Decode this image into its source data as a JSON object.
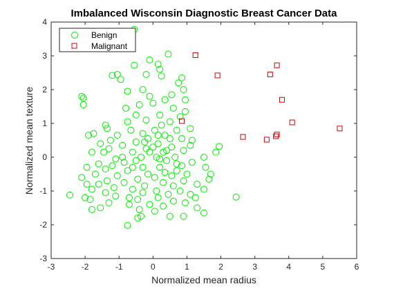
{
  "chart_data": {
    "type": "scatter",
    "title": "Imbalanced Wisconsin Diagnostic Breast Cancer Data",
    "xlabel": "Normalized mean radius",
    "ylabel": "Normalized mean texture",
    "xlim": [
      -3,
      6
    ],
    "ylim": [
      -3,
      4
    ],
    "xticks": [
      "-3",
      "-2",
      "-1",
      "0",
      "1",
      "2",
      "3",
      "4",
      "5",
      "6"
    ],
    "yticks": [
      "-3",
      "-2",
      "-1",
      "0",
      "1",
      "2",
      "3",
      "4"
    ],
    "grid": false,
    "legend_position": "top-left",
    "series": [
      {
        "name": "Benign",
        "marker": "circle",
        "color": "#00ee00",
        "points": [
          [
            -0.55,
            3.78
          ],
          [
            0.45,
            3.05
          ],
          [
            -0.1,
            2.88
          ],
          [
            0.15,
            2.75
          ],
          [
            -0.55,
            2.72
          ],
          [
            0.2,
            2.6
          ],
          [
            -1.2,
            2.42
          ],
          [
            -1.05,
            2.45
          ],
          [
            -0.2,
            2.45
          ],
          [
            0.25,
            2.4
          ],
          [
            0.85,
            2.35
          ],
          [
            -0.95,
            2.3
          ],
          [
            0.75,
            2.2
          ],
          [
            0.9,
            2.0
          ],
          [
            -0.3,
            2.0
          ],
          [
            -0.75,
            1.95
          ],
          [
            0.55,
            1.85
          ],
          [
            -0.1,
            1.8
          ],
          [
            0.35,
            1.7
          ],
          [
            0.95,
            1.7
          ],
          [
            -2.1,
            1.8
          ],
          [
            -2.05,
            1.75
          ],
          [
            -2.05,
            1.55
          ],
          [
            -0.4,
            1.55
          ],
          [
            0.0,
            1.6
          ],
          [
            0.6,
            1.45
          ],
          [
            0.95,
            1.35
          ],
          [
            -0.8,
            1.45
          ],
          [
            0.8,
            1.2
          ],
          [
            -0.5,
            1.25
          ],
          [
            0.2,
            1.25
          ],
          [
            -0.2,
            1.1
          ],
          [
            -0.75,
            1.05
          ],
          [
            0.5,
            1.05
          ],
          [
            0.25,
            0.95
          ],
          [
            -1.4,
            0.95
          ],
          [
            -1.35,
            0.85
          ],
          [
            0.7,
            0.8
          ],
          [
            -0.65,
            0.8
          ],
          [
            0.05,
            0.8
          ],
          [
            -0.3,
            0.7
          ],
          [
            1.1,
            0.85
          ],
          [
            -1.75,
            0.7
          ],
          [
            -1.9,
            0.65
          ],
          [
            -1.05,
            0.65
          ],
          [
            0.35,
            0.65
          ],
          [
            -0.15,
            0.55
          ],
          [
            0.85,
            0.55
          ],
          [
            1.15,
            0.5
          ],
          [
            -1.25,
            0.5
          ],
          [
            -0.5,
            0.45
          ],
          [
            0.15,
            0.4
          ],
          [
            -1.55,
            0.4
          ],
          [
            1.1,
            0.35
          ],
          [
            -0.9,
            0.35
          ],
          [
            0.55,
            0.3
          ],
          [
            1.95,
            0.32
          ],
          [
            -1.3,
            0.25
          ],
          [
            -0.2,
            0.25
          ],
          [
            0.9,
            0.2
          ],
          [
            1.85,
            0.15
          ],
          [
            -1.8,
            0.15
          ],
          [
            -1.45,
            0.15
          ],
          [
            -0.6,
            0.15
          ],
          [
            0.3,
            0.15
          ],
          [
            -0.35,
            0.0
          ],
          [
            0.1,
            0.0
          ],
          [
            0.65,
            0.0
          ],
          [
            -1.1,
            -0.05
          ],
          [
            1.5,
            0.0
          ],
          [
            -0.85,
            -0.15
          ],
          [
            -0.5,
            -0.1
          ],
          [
            0.4,
            -0.1
          ],
          [
            1.15,
            -0.15
          ],
          [
            -1.6,
            -0.2
          ],
          [
            0.85,
            -0.25
          ],
          [
            -1.2,
            -0.25
          ],
          [
            -1.95,
            -0.3
          ],
          [
            1.55,
            -0.3
          ],
          [
            -0.3,
            -0.3
          ],
          [
            0.2,
            -0.3
          ],
          [
            -1.4,
            -0.35
          ],
          [
            0.7,
            -0.4
          ],
          [
            -0.75,
            -0.4
          ],
          [
            0.35,
            -0.45
          ],
          [
            1.7,
            -0.5
          ],
          [
            -0.15,
            -0.5
          ],
          [
            -1.7,
            -0.5
          ],
          [
            1.0,
            -0.5
          ],
          [
            -1.05,
            -0.55
          ],
          [
            0.55,
            -0.55
          ],
          [
            -2.1,
            -0.6
          ],
          [
            0.05,
            -0.6
          ],
          [
            1.65,
            -0.65
          ],
          [
            -0.45,
            -0.65
          ],
          [
            -1.35,
            -0.7
          ],
          [
            0.9,
            -0.7
          ],
          [
            -0.85,
            -0.75
          ],
          [
            0.3,
            -0.75
          ],
          [
            -1.6,
            -0.8
          ],
          [
            1.3,
            -0.8
          ],
          [
            -0.25,
            -0.85
          ],
          [
            0.6,
            -0.85
          ],
          [
            -1.15,
            -0.9
          ],
          [
            1.5,
            -0.95
          ],
          [
            -1.8,
            -0.95
          ],
          [
            -0.6,
            -0.95
          ],
          [
            0.1,
            -1.0
          ],
          [
            0.8,
            -1.0
          ],
          [
            -1.4,
            -1.05
          ],
          [
            -0.3,
            -1.05
          ],
          [
            0.45,
            -1.1
          ],
          [
            1.1,
            -1.1
          ],
          [
            -2.45,
            -1.12
          ],
          [
            -1.1,
            -1.15
          ],
          [
            -0.7,
            -1.2
          ],
          [
            0.15,
            -1.2
          ],
          [
            1.25,
            -1.2
          ],
          [
            2.45,
            -1.18
          ],
          [
            -1.85,
            -1.25
          ],
          [
            -0.45,
            -1.25
          ],
          [
            0.6,
            -1.3
          ],
          [
            -1.3,
            -1.35
          ],
          [
            0.95,
            -1.35
          ],
          [
            -0.1,
            -1.4
          ],
          [
            -0.7,
            -1.4
          ],
          [
            0.3,
            -1.45
          ],
          [
            -1.55,
            -1.5
          ],
          [
            1.3,
            -1.5
          ],
          [
            -0.4,
            -1.55
          ],
          [
            0.05,
            -1.6
          ],
          [
            -1.8,
            -1.55
          ],
          [
            1.5,
            -1.65
          ],
          [
            0.5,
            -1.75
          ],
          [
            -0.35,
            -1.75
          ],
          [
            0.9,
            -1.75
          ],
          [
            -0.45,
            -1.8
          ],
          [
            -0.75,
            -2.02
          ],
          [
            -2.0,
            -1.2
          ],
          [
            -1.95,
            -0.8
          ],
          [
            0.0,
            0.3
          ],
          [
            0.2,
            -0.05
          ],
          [
            -0.1,
            0.15
          ],
          [
            0.4,
            0.2
          ],
          [
            -0.6,
            -0.3
          ],
          [
            -0.25,
            0.45
          ],
          [
            0.5,
            0.55
          ],
          [
            0.7,
            -0.2
          ],
          [
            -0.9,
            0.0
          ],
          [
            0.15,
            0.65
          ]
        ]
      },
      {
        "name": "Malignant",
        "marker": "square",
        "color": "#cc0000",
        "points": [
          [
            1.25,
            3.02
          ],
          [
            3.65,
            2.72
          ],
          [
            3.45,
            2.45
          ],
          [
            1.9,
            2.42
          ],
          [
            3.8,
            1.7
          ],
          [
            0.85,
            1.07
          ],
          [
            4.1,
            1.03
          ],
          [
            5.5,
            0.85
          ],
          [
            3.65,
            0.67
          ],
          [
            3.62,
            0.62
          ],
          [
            2.65,
            0.6
          ],
          [
            3.35,
            0.52
          ]
        ]
      }
    ]
  }
}
